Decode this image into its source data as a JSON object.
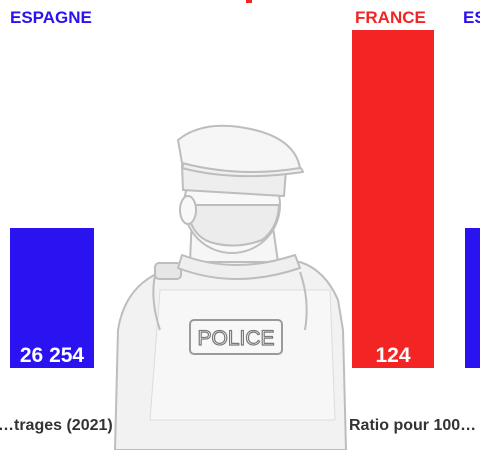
{
  "colors": {
    "spain": "#2b12f0",
    "france": "#f22424",
    "caption": "#333333",
    "illustration_stroke": "#c4c4c4",
    "illustration_fill": "#f4f4f4"
  },
  "illustration": {
    "icon": "police-officer-back-view",
    "badge_text": "POLICE"
  },
  "chart_data": {
    "type": "bar",
    "panels": [
      {
        "caption": "…trages (2021)",
        "bars": [
          {
            "country": "ESPAGNE",
            "value": 26254,
            "value_label": "26 254",
            "color": "#2b12f0"
          }
        ]
      },
      {
        "caption": "Ratio pour 100…",
        "bars": [
          {
            "country": "FRANCE",
            "value": 124,
            "value_label": "124",
            "color": "#f22424"
          },
          {
            "country": "ES…",
            "value": null,
            "value_label": "",
            "color": "#2b12f0"
          }
        ]
      }
    ]
  }
}
